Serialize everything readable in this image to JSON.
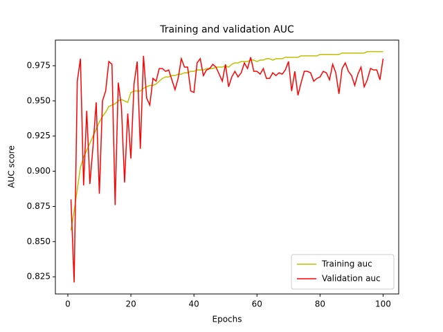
{
  "chart_data": {
    "type": "line",
    "title": "Training and validation AUC",
    "x_label": "Epochs",
    "y_label": "AUC score",
    "x": [
      1,
      2,
      3,
      4,
      5,
      6,
      7,
      8,
      9,
      10,
      11,
      12,
      13,
      14,
      15,
      16,
      17,
      18,
      19,
      20,
      21,
      22,
      23,
      24,
      25,
      26,
      27,
      28,
      29,
      30,
      31,
      32,
      33,
      34,
      35,
      36,
      37,
      38,
      39,
      40,
      41,
      42,
      43,
      44,
      45,
      46,
      47,
      48,
      49,
      50,
      51,
      52,
      53,
      54,
      55,
      56,
      57,
      58,
      59,
      60,
      61,
      62,
      63,
      64,
      65,
      66,
      67,
      68,
      69,
      70,
      71,
      72,
      73,
      74,
      75,
      76,
      77,
      78,
      79,
      80,
      81,
      82,
      83,
      84,
      85,
      86,
      87,
      88,
      89,
      90,
      91,
      92,
      93,
      94,
      95,
      96,
      97,
      98,
      99,
      100
    ],
    "series": [
      {
        "name": "Training auc",
        "color": "#bfbf00",
        "values": [
          0.858,
          0.872,
          0.887,
          0.903,
          0.91,
          0.915,
          0.92,
          0.925,
          0.93,
          0.935,
          0.939,
          0.942,
          0.946,
          0.947,
          0.948,
          0.95,
          0.951,
          0.95,
          0.949,
          0.956,
          0.957,
          0.957,
          0.957,
          0.959,
          0.96,
          0.961,
          0.961,
          0.962,
          0.964,
          0.966,
          0.967,
          0.967,
          0.968,
          0.968,
          0.969,
          0.969,
          0.97,
          0.97,
          0.971,
          0.971,
          0.972,
          0.972,
          0.972,
          0.973,
          0.973,
          0.973,
          0.974,
          0.974,
          0.974,
          0.975,
          0.974,
          0.976,
          0.977,
          0.977,
          0.978,
          0.978,
          0.978,
          0.979,
          0.979,
          0.978,
          0.979,
          0.979,
          0.98,
          0.98,
          0.979,
          0.98,
          0.98,
          0.98,
          0.981,
          0.981,
          0.981,
          0.981,
          0.981,
          0.982,
          0.982,
          0.982,
          0.982,
          0.982,
          0.982,
          0.983,
          0.983,
          0.983,
          0.983,
          0.983,
          0.983,
          0.983,
          0.984,
          0.984,
          0.984,
          0.984,
          0.984,
          0.984,
          0.984,
          0.984,
          0.985,
          0.985,
          0.985,
          0.985,
          0.985,
          0.985
        ]
      },
      {
        "name": "Validation auc",
        "color": "#ff0000",
        "values": [
          0.88,
          0.821,
          0.964,
          0.98,
          0.89,
          0.943,
          0.891,
          0.918,
          0.949,
          0.884,
          0.95,
          0.957,
          0.978,
          0.976,
          0.876,
          0.963,
          0.946,
          0.892,
          0.941,
          0.909,
          0.962,
          0.978,
          0.916,
          0.982,
          0.952,
          0.947,
          0.966,
          0.964,
          0.973,
          0.973,
          0.971,
          0.972,
          0.965,
          0.958,
          0.966,
          0.98,
          0.974,
          0.974,
          0.957,
          0.956,
          0.977,
          0.98,
          0.968,
          0.972,
          0.973,
          0.976,
          0.974,
          0.969,
          0.964,
          0.976,
          0.96,
          0.967,
          0.971,
          0.967,
          0.97,
          0.977,
          0.973,
          0.981,
          0.971,
          0.971,
          0.969,
          0.973,
          0.966,
          0.966,
          0.97,
          0.968,
          0.97,
          0.969,
          0.972,
          0.978,
          0.957,
          0.971,
          0.954,
          0.963,
          0.971,
          0.971,
          0.97,
          0.964,
          0.966,
          0.967,
          0.971,
          0.97,
          0.965,
          0.976,
          0.97,
          0.955,
          0.973,
          0.977,
          0.971,
          0.968,
          0.961,
          0.969,
          0.974,
          0.96,
          0.965,
          0.973,
          0.972,
          0.972,
          0.965,
          0.98
        ]
      }
    ],
    "xlim": [
      -3.95,
      104.95
    ],
    "xticks": [
      0,
      20,
      40,
      60,
      80,
      100
    ],
    "ylim": [
      0.8128,
      0.9932
    ],
    "yticks": [
      0.825,
      {
        "value": 0.85,
        "label": "0.850"
      },
      0.875,
      {
        "value": 0.9,
        "label": "0.900"
      },
      0.925,
      {
        "value": 0.95,
        "label": "0.950"
      },
      0.975
    ],
    "legend": "lower right"
  }
}
